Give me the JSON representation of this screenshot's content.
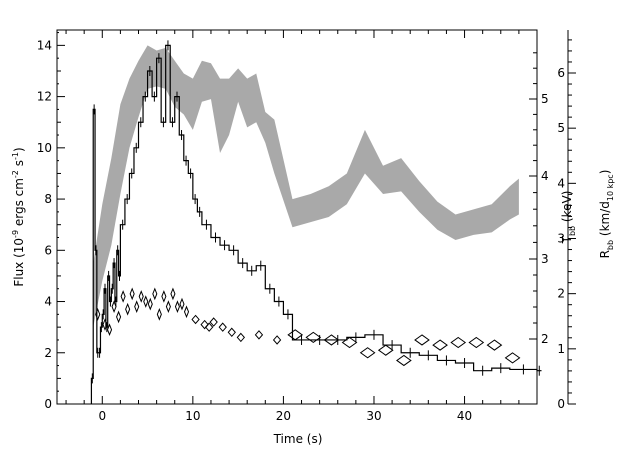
{
  "chart_data": {
    "type": "line",
    "xlabel": "Time (s)",
    "ylabel_left": "Flux (10",
    "ylabel_left_exp": "-9",
    "ylabel_left_mid": " ergs cm",
    "ylabel_left_exp2": "-2",
    "ylabel_left_end": " s",
    "ylabel_left_exp3": "-1",
    "ylabel_left_close": ")",
    "ylabel_right1": "T",
    "ylabel_right1_sub": "bb",
    "ylabel_right1_unit": " (keV)",
    "ylabel_right2": "R",
    "ylabel_right2_sub": "bb",
    "ylabel_right2_unit": " (km/d",
    "ylabel_right2_sub2": "10 kpc",
    "ylabel_right2_close": ")",
    "xlim": [
      -5,
      48
    ],
    "ylim_flux": [
      0,
      14.6
    ],
    "x_ticks": [
      "0",
      "10",
      "20",
      "30",
      "40"
    ],
    "y_ticks_flux": [
      "0",
      "2",
      "4",
      "6",
      "8",
      "10",
      "12",
      "14"
    ],
    "y_ticks_T": [
      "2",
      "3",
      "4",
      "5"
    ],
    "y_ticks_R": [
      "0",
      "1",
      "2",
      "3",
      "4",
      "5",
      "6"
    ],
    "series": [
      {
        "style": "histogram",
        "x": [
          -1.2,
          -1,
          -0.8,
          -0.6,
          -0.4,
          -0.2,
          0,
          0.2,
          0.4,
          0.6,
          0.8,
          1,
          1.2,
          1.4,
          1.6,
          1.8,
          2,
          2.5,
          3,
          3.5,
          4,
          4.5,
          5,
          5.5,
          6,
          6.5,
          7,
          7.5,
          8,
          8.5,
          9,
          9.5,
          10,
          10.5,
          11,
          12,
          13,
          14,
          15,
          16,
          17,
          18,
          19,
          20,
          21,
          23,
          25,
          27,
          29,
          31,
          33,
          35,
          37,
          39,
          41,
          43,
          45,
          48
        ],
        "y": [
          1,
          11.5,
          6,
          2,
          2,
          3,
          3.5,
          4.5,
          3,
          5,
          4,
          4.5,
          5.5,
          4,
          6,
          5,
          7,
          8,
          9,
          10,
          11,
          12,
          13,
          12,
          13.5,
          11,
          14,
          11,
          12,
          10.5,
          9.5,
          9,
          8,
          7.5,
          7,
          6.5,
          6.2,
          6,
          5.5,
          5.2,
          5.4,
          4.5,
          4,
          3.5,
          2.5,
          2.5,
          2.5,
          2.6,
          2.7,
          2.3,
          2.0,
          1.9,
          1.7,
          1.6,
          1.3,
          1.4,
          1.35,
          1.3
        ]
      },
      {
        "style": "band",
        "x": [
          -1,
          0,
          1,
          2,
          3,
          4,
          5,
          6,
          7,
          8,
          9,
          10,
          11,
          12,
          13,
          14,
          15,
          16,
          17,
          18,
          19,
          21,
          23,
          25,
          27,
          29,
          31,
          33,
          35,
          37,
          39,
          41,
          43,
          45,
          46
        ],
        "y_low": [
          3.0,
          4.8,
          6.2,
          8.2,
          10.0,
          11.2,
          12.3,
          12.4,
          12.3,
          11.6,
          11.3,
          10.7,
          11.8,
          11.9,
          9.8,
          10.5,
          11.8,
          10.8,
          11.0,
          10.2,
          9.0,
          6.9,
          7.1,
          7.3,
          7.8,
          9.0,
          8.2,
          8.3,
          7.5,
          6.8,
          6.4,
          6.6,
          6.7,
          7.2,
          7.4
        ],
        "y_high": [
          5.5,
          7.8,
          9.6,
          11.7,
          12.7,
          13.4,
          14.0,
          13.8,
          13.9,
          13.4,
          12.9,
          12.7,
          13.4,
          13.3,
          12.7,
          12.7,
          13.1,
          12.7,
          12.9,
          11.4,
          11.1,
          8.0,
          8.2,
          8.5,
          9.0,
          10.7,
          9.3,
          9.6,
          8.7,
          7.9,
          7.4,
          7.6,
          7.8,
          8.5,
          8.8
        ]
      },
      {
        "style": "diamonds",
        "x": [
          -0.5,
          0.3,
          0.8,
          1.3,
          1.8,
          2.3,
          2.8,
          3.3,
          3.8,
          4.3,
          4.8,
          5.3,
          5.8,
          6.3,
          6.8,
          7.3,
          7.8,
          8.3,
          8.8,
          9.3,
          10.3,
          11.3,
          11.8,
          12.3,
          13.3,
          14.3,
          15.3,
          17.3,
          19.3,
          21.3,
          23.3,
          25.3,
          27.3,
          29.3,
          31.3,
          33.3,
          35.3,
          37.3,
          39.3,
          41.3,
          43.3,
          45.3
        ],
        "y": [
          3.5,
          3.1,
          2.9,
          3.8,
          3.4,
          4.2,
          3.7,
          4.3,
          3.8,
          4.2,
          4.0,
          3.9,
          4.3,
          3.5,
          4.2,
          3.8,
          4.3,
          3.8,
          3.9,
          3.6,
          3.3,
          3.1,
          3.0,
          3.2,
          3.0,
          2.8,
          2.6,
          2.7,
          2.5,
          2.7,
          2.6,
          2.5,
          2.4,
          2.0,
          2.1,
          1.7,
          2.5,
          2.3,
          2.4,
          2.4,
          2.3,
          1.8
        ]
      }
    ]
  }
}
